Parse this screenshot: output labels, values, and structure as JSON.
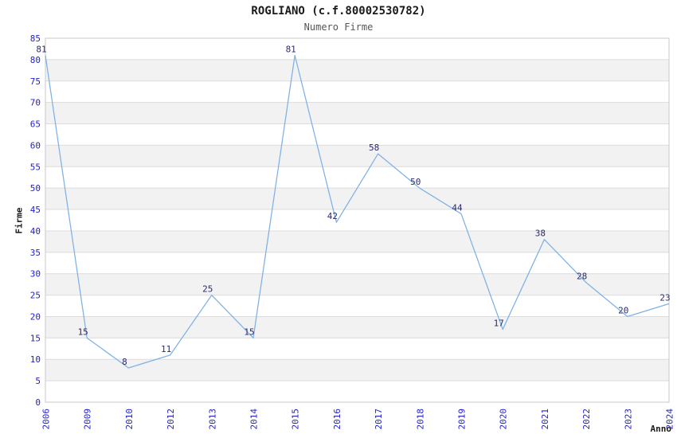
{
  "page": {
    "title": "ROGLIANO (c.f.80002530782)",
    "subtitle": "Numero Firme"
  },
  "chart_data": {
    "type": "line",
    "title": "ROGLIANO (c.f.80002530782)",
    "subtitle": "Numero Firme",
    "xlabel": "Anno",
    "ylabel": "Firme",
    "categories": [
      "2006",
      "2009",
      "2010",
      "2012",
      "2013",
      "2014",
      "2015",
      "2016",
      "2017",
      "2018",
      "2019",
      "2020",
      "2021",
      "2022",
      "2023",
      "2024"
    ],
    "values": [
      81,
      15,
      8,
      11,
      25,
      15,
      81,
      42,
      58,
      50,
      44,
      17,
      38,
      28,
      20,
      23
    ],
    "value_labels_shown": true,
    "ylim": [
      0,
      85
    ],
    "ytick_step": 5,
    "yticks": [
      0,
      5,
      10,
      15,
      20,
      25,
      30,
      35,
      40,
      45,
      50,
      55,
      60,
      65,
      70,
      75,
      80,
      85
    ],
    "xtick_rotation_deg": -90,
    "legend": "none",
    "grid": "horizontal gridlines with alternating shaded bands every 5 units",
    "colors": {
      "line": "#7eb1e3",
      "tick_label": "#2222cc",
      "value_label": "#2b2b6e",
      "band": "#f2f2f2",
      "band_alt": "#ffffff",
      "gridline": "#dcdcdc",
      "border": "#c9c9c9",
      "title": "#1a1a1a",
      "subtitle": "#565656",
      "axis_title": "#1a1a1a",
      "background": "#ffffff"
    }
  }
}
